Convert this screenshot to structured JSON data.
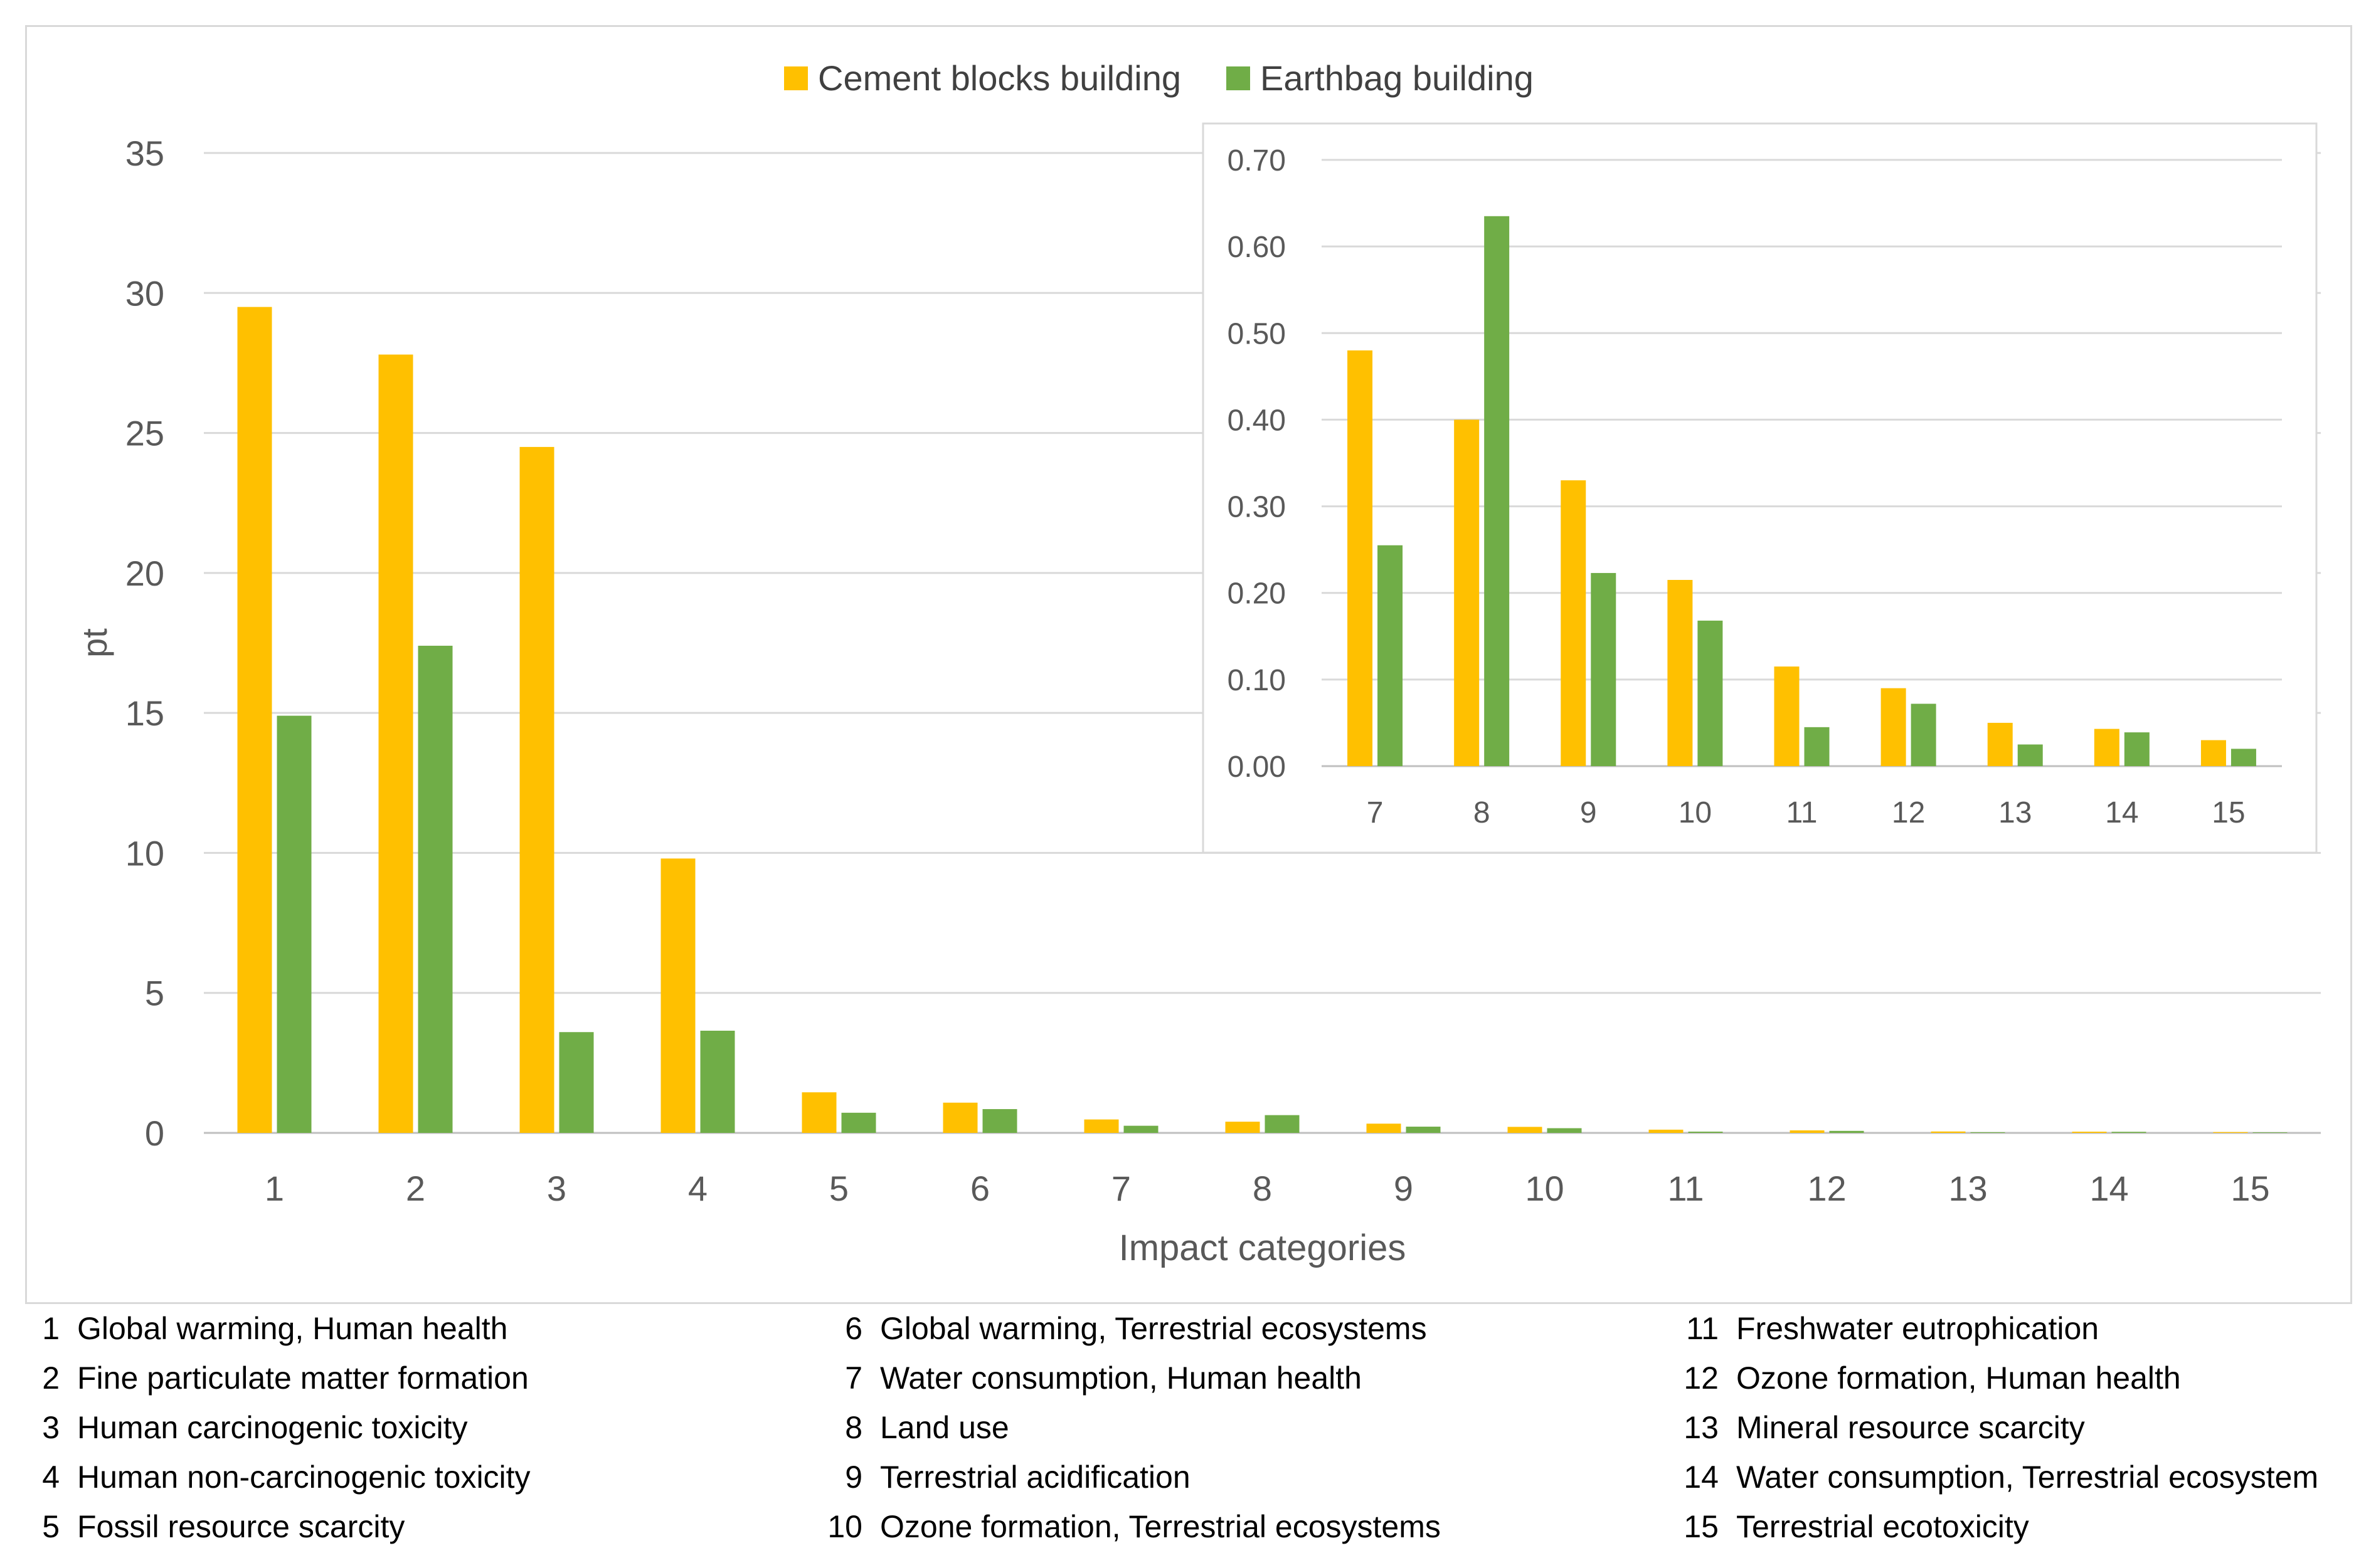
{
  "chart_data": [
    {
      "type": "bar",
      "title": "",
      "xlabel": "Impact categories",
      "ylabel": "pt",
      "categories": [
        "1",
        "2",
        "3",
        "4",
        "5",
        "6",
        "7",
        "8",
        "9",
        "10",
        "11",
        "12",
        "13",
        "14",
        "15"
      ],
      "ylim": [
        0,
        35
      ],
      "yticks": [
        0,
        5,
        10,
        15,
        20,
        25,
        30,
        35
      ],
      "grid": true,
      "legend_position": "top-center",
      "series": [
        {
          "name": "Cement blocks building",
          "color": "#FFC000",
          "values": [
            29.5,
            27.8,
            24.5,
            9.8,
            1.45,
            1.08,
            0.48,
            0.4,
            0.33,
            0.215,
            0.115,
            0.09,
            0.05,
            0.043,
            0.03
          ]
        },
        {
          "name": "Earthbag building",
          "color": "#70AD47",
          "values": [
            14.9,
            17.4,
            3.6,
            3.65,
            0.72,
            0.85,
            0.255,
            0.635,
            0.223,
            0.168,
            0.045,
            0.072,
            0.025,
            0.039,
            0.02
          ]
        }
      ]
    },
    {
      "type": "bar",
      "title": "",
      "xlabel": "",
      "ylabel": "",
      "categories": [
        "7",
        "8",
        "9",
        "10",
        "11",
        "12",
        "13",
        "14",
        "15"
      ],
      "ylim": [
        0,
        0.7
      ],
      "ytick_labels": [
        "0.00",
        "0.10",
        "0.20",
        "0.30",
        "0.40",
        "0.50",
        "0.60",
        "0.70"
      ],
      "grid": true,
      "legend_position": "none",
      "series": [
        {
          "name": "Cement blocks building",
          "color": "#FFC000",
          "values": [
            0.48,
            0.4,
            0.33,
            0.215,
            0.115,
            0.09,
            0.05,
            0.043,
            0.03
          ]
        },
        {
          "name": "Earthbag building",
          "color": "#70AD47",
          "values": [
            0.255,
            0.635,
            0.223,
            0.168,
            0.045,
            0.072,
            0.025,
            0.039,
            0.02
          ]
        }
      ]
    }
  ],
  "category_list": [
    {
      "num": "1",
      "name": "Global warming, Human health"
    },
    {
      "num": "2",
      "name": "Fine particulate matter formation"
    },
    {
      "num": "3",
      "name": "Human carcinogenic toxicity"
    },
    {
      "num": "4",
      "name": "Human non-carcinogenic toxicity"
    },
    {
      "num": "5",
      "name": "Fossil resource scarcity"
    },
    {
      "num": "6",
      "name": "Global warming, Terrestrial ecosystems"
    },
    {
      "num": "7",
      "name": "Water consumption, Human health"
    },
    {
      "num": "8",
      "name": "Land use"
    },
    {
      "num": "9",
      "name": "Terrestrial acidification"
    },
    {
      "num": "10",
      "name": "Ozone formation, Terrestrial ecosystems"
    },
    {
      "num": "11",
      "name": "Freshwater eutrophication"
    },
    {
      "num": "12",
      "name": "Ozone formation, Human health"
    },
    {
      "num": "13",
      "name": "Mineral resource scarcity"
    },
    {
      "num": "14",
      "name": "Water consumption, Terrestrial ecosystem"
    },
    {
      "num": "15",
      "name": "Terrestrial ecotoxicity"
    }
  ]
}
